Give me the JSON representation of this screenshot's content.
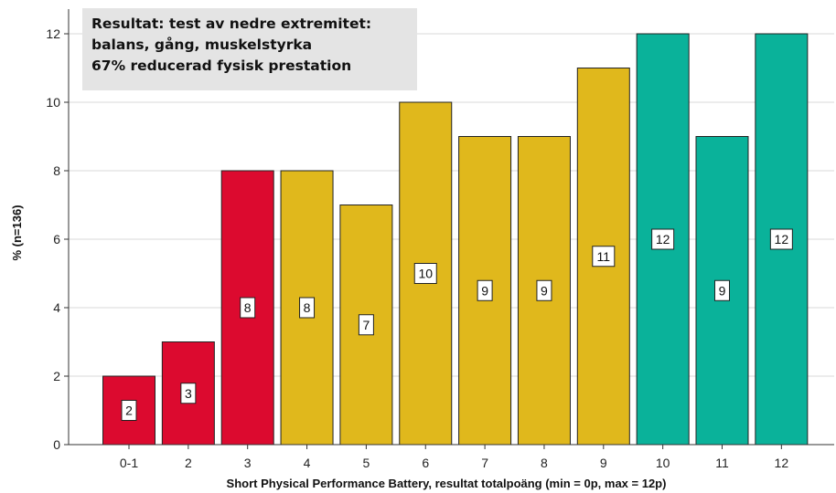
{
  "chart_data": {
    "type": "bar",
    "categories": [
      "0-1",
      "2",
      "3",
      "4",
      "5",
      "6",
      "7",
      "8",
      "9",
      "10",
      "11",
      "12"
    ],
    "values": [
      2,
      3,
      8,
      8,
      7,
      10,
      9,
      9,
      11,
      12,
      9,
      12
    ],
    "data_labels": [
      "2",
      "3",
      "8",
      "8",
      "7",
      "10",
      "9",
      "9",
      "11",
      "12",
      "9",
      "12"
    ],
    "bar_colors": [
      "#dc0a2f",
      "#dc0a2f",
      "#dc0a2f",
      "#e0b81c",
      "#e0b81c",
      "#e0b81c",
      "#e0b81c",
      "#e0b81c",
      "#e0b81c",
      "#0ab29a",
      "#0ab29a",
      "#0ab29a"
    ],
    "xlabel": "Short Physical Performance Battery, resultat totalpoäng (min = 0p, max = 12p)",
    "ylabel": "% (n=136)",
    "ylim": [
      0,
      12.6
    ],
    "yticks": [
      0,
      2,
      4,
      6,
      8,
      10,
      12
    ],
    "grid": true,
    "annotation": {
      "lines": [
        "Resultat: test av nedre extremitet:",
        "balans, gång, muskelstyrka",
        "67% reducerad fysisk prestation"
      ]
    }
  },
  "colors": {
    "red": "#dc0a2f",
    "yellow": "#e0b81c",
    "teal": "#0ab29a",
    "grid": "#d9d9d9"
  }
}
